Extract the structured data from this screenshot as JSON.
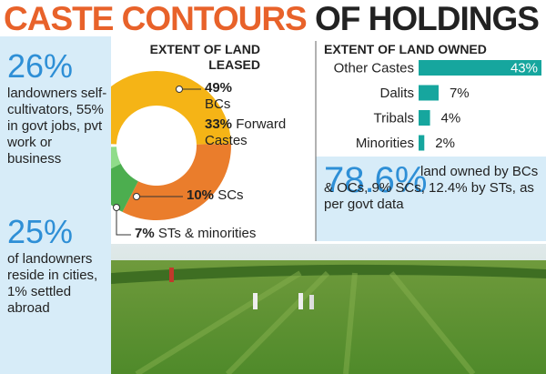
{
  "header": {
    "title_highlight": "CASTE CONTOURS",
    "title_rest": "OF HOLDINGS"
  },
  "stats": [
    {
      "number": "26%",
      "text": "landowners self-cultivators, 55% in govt jobs, pvt work or business"
    },
    {
      "number": "25%",
      "text": "of landowners reside in cities, 1% settled abroad"
    },
    {
      "number": "78.6%",
      "text": "land owned by BCs & OCs, 9% SCs, 12.4% by STs, as per govt data"
    }
  ],
  "chart_data": [
    {
      "type": "pie",
      "title": "EXTENT OF LAND LEASED",
      "categories": [
        "BCs",
        "Forward Castes",
        "SCs",
        "STs & minorities"
      ],
      "values": [
        49,
        33,
        10,
        7
      ],
      "value_labels": [
        "49%",
        "33%",
        "10%",
        "7%"
      ],
      "colors": [
        "#f5b416",
        "#ea7d2c",
        "#4cae4f",
        "#8fdc8a"
      ]
    },
    {
      "type": "bar",
      "orientation": "horizontal",
      "title": "EXTENT OF LAND OWNED",
      "categories": [
        "Other Castes",
        "Dalits",
        "Tribals",
        "Minorities"
      ],
      "values": [
        43,
        7,
        4,
        2
      ],
      "value_labels": [
        "43%",
        "7%",
        "4%",
        "2%"
      ],
      "color": "#16a69e"
    }
  ]
}
